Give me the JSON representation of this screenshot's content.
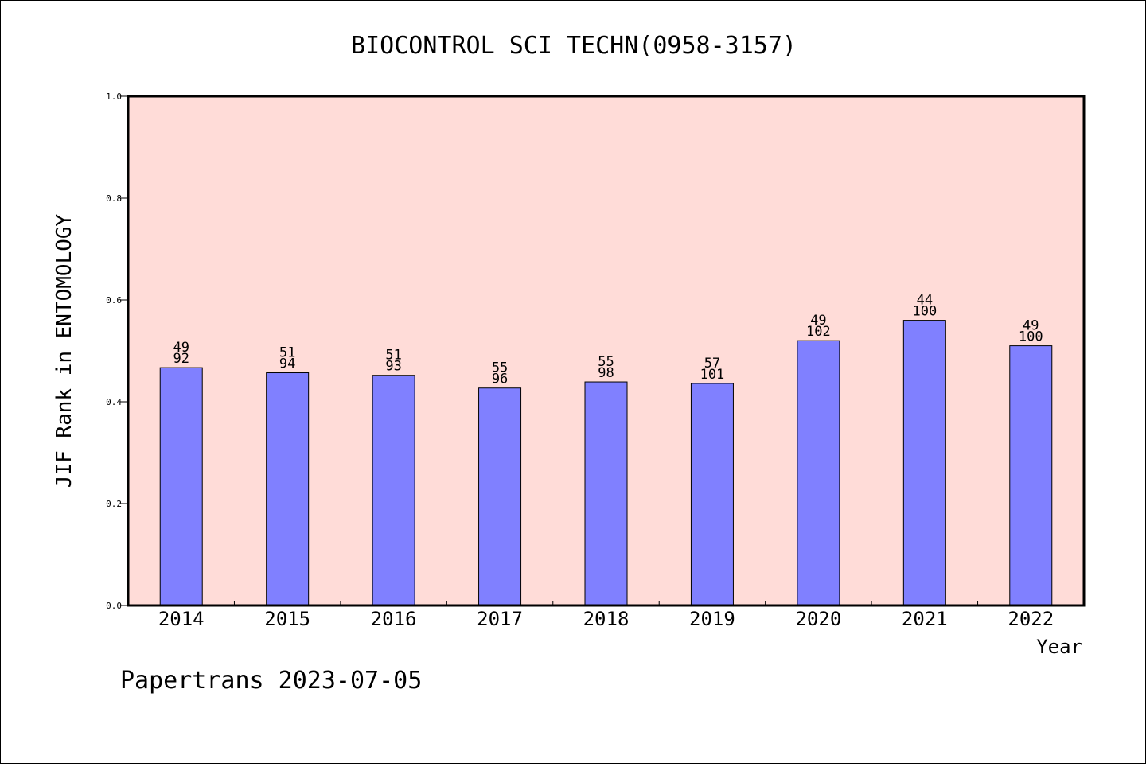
{
  "chart_data": {
    "type": "bar",
    "title": "BIOCONTROL SCI TECHN(0958-3157)",
    "xlabel": "Year",
    "ylabel": "JIF Rank in ENTOMOLOGY",
    "ylim": [
      0,
      1.0
    ],
    "yticks": [
      "0.0",
      "0.2",
      "0.4",
      "0.6",
      "0.8",
      "1.0"
    ],
    "categories": [
      "2014",
      "2015",
      "2016",
      "2017",
      "2018",
      "2019",
      "2020",
      "2021",
      "2022"
    ],
    "values": [
      0.467,
      0.457,
      0.452,
      0.427,
      0.439,
      0.436,
      0.52,
      0.56,
      0.51
    ],
    "rank": [
      "49",
      "51",
      "51",
      "55",
      "55",
      "57",
      "49",
      "44",
      "49"
    ],
    "total": [
      "92",
      "94",
      "93",
      "96",
      "98",
      "101",
      "102",
      "100",
      "100"
    ],
    "grid": false,
    "colors": {
      "bar": "#8080ff",
      "plot_background": "#ffdcd8",
      "axis": "#000000"
    }
  },
  "footer": "Papertrans 2023-07-05"
}
